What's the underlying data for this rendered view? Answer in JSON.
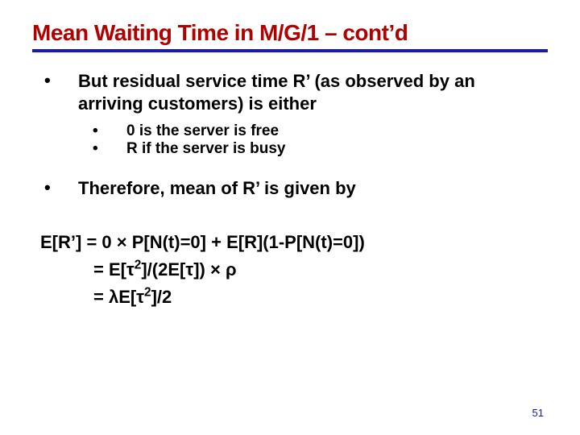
{
  "colors": {
    "title": "#b00000",
    "underline": "#1818b8",
    "body_text": "#000000",
    "pagenum": "#1818b8",
    "background": "#ffffff"
  },
  "fonts": {
    "title_size": 28,
    "l1_size": 22,
    "l2_size": 19,
    "eq_size": 22,
    "pagenum_size": 13
  },
  "title": "Mean Waiting Time in M/G/1 – cont’d",
  "bullets": {
    "b1": {
      "text": "But residual service time R’ (as observed by an arriving customers) is either",
      "sub": {
        "s1": "0 is the server is free",
        "s2": "R if the server is busy"
      }
    },
    "b2": {
      "text": "Therefore, mean of R’ is given by"
    }
  },
  "equation": {
    "line1_a": "E[R’] = 0 ",
    "line1_b": " P[N(t)=0] + E[R](1-P[N(t)=0])",
    "line2_a": "= E[",
    "line2_b": "]/(2E[",
    "line2_c": "]) ",
    "line3_a": "= λE[",
    "line3_b": "]/2",
    "tau": "τ",
    "times": "×",
    "rho": "ρ",
    "sq": "2"
  },
  "page_number": "51"
}
